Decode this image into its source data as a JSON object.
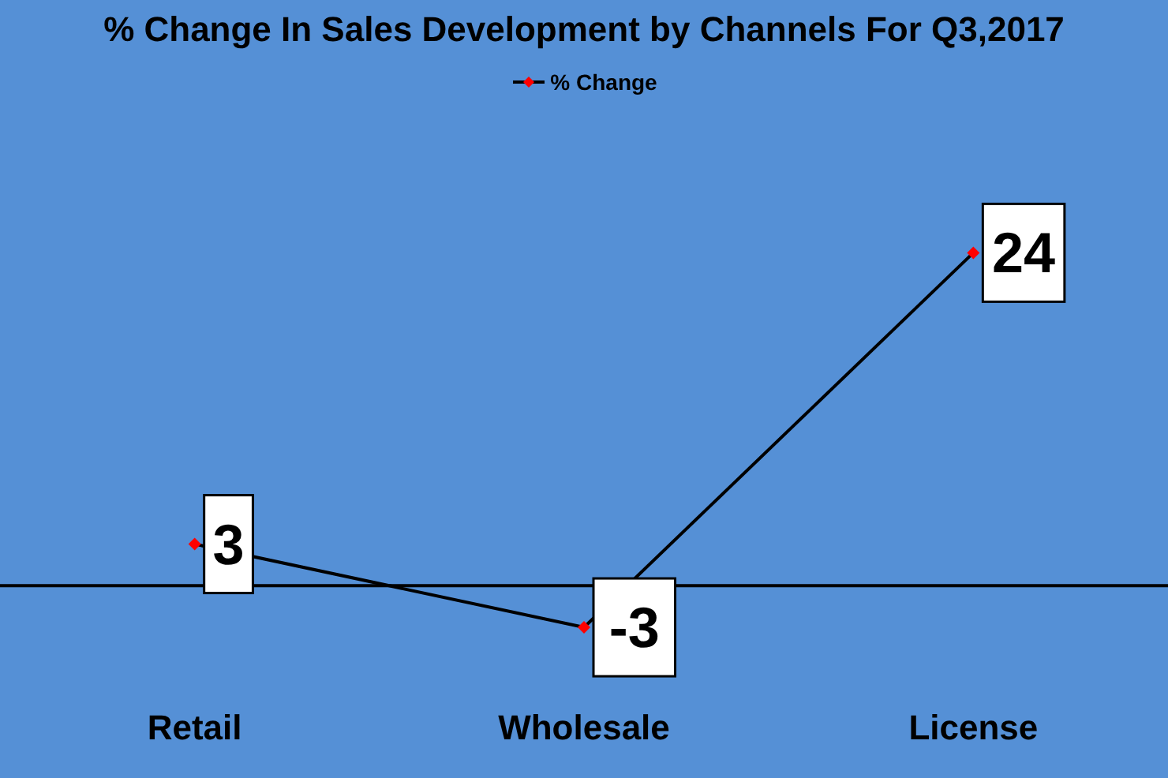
{
  "chart_data": {
    "type": "line",
    "title": "% Change In Sales Development by Channels For Q3,2017",
    "categories": [
      "Retail",
      "Wholesale",
      "License"
    ],
    "series": [
      {
        "name": "% Change",
        "color": "#000000",
        "colors": [
          "#ff0000",
          "#ff0000",
          "#ff0000"
        ],
        "values": [
          3,
          -3,
          24
        ]
      }
    ],
    "data_labels": true,
    "legend": "top",
    "marker": "diamond",
    "line_style": "solid",
    "tick_labels": "x"
  }
}
